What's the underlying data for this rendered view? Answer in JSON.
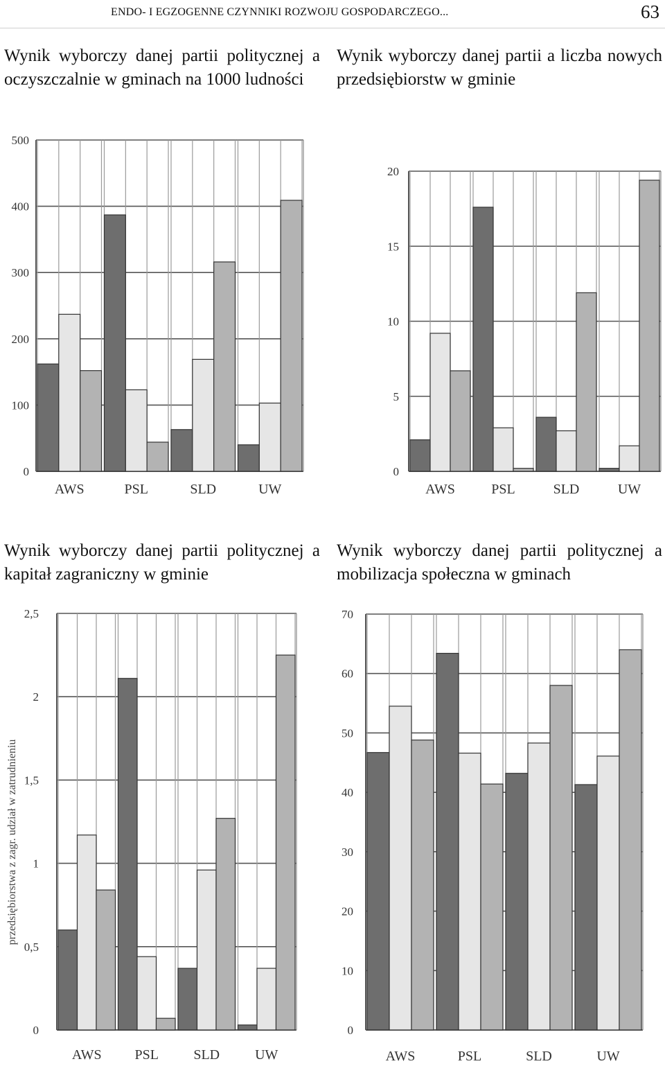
{
  "header": {
    "running_title": "ENDO- I EGZOGENNE CZYNNIKI ROZWOJU GOSPODARCZEGO...",
    "page_number": "63"
  },
  "colors": {
    "series1": "#6e6e6e",
    "series2": "#e6e6e6",
    "series3": "#b3b3b3",
    "grid": "#555555"
  },
  "captions": [
    "Wynik wyborczy danej partii politycznej a oczyszczalnie w gminach na 1000 ludności",
    "Wynik wyborczy danej partii a liczba nowych przedsiębiorstw w gminie",
    "Wynik wyborczy danej partii politycznej a kapitał zagraniczny w gminie",
    "Wynik wyborczy danej partii politycznej a mobilizacja społeczna w gminach"
  ],
  "chart_data": [
    {
      "type": "bar",
      "categories": [
        "AWS",
        "PSL",
        "SLD",
        "UW"
      ],
      "series": [
        {
          "values": [
            162,
            387,
            63,
            40
          ]
        },
        {
          "values": [
            237,
            123,
            169,
            103
          ]
        },
        {
          "values": [
            152,
            44,
            316,
            409
          ]
        }
      ],
      "yticks": [
        "0",
        "100",
        "200",
        "300",
        "400",
        "500"
      ],
      "ylim": [
        0,
        500
      ],
      "ylabel": "",
      "grid": true
    },
    {
      "type": "bar",
      "categories": [
        "AWS",
        "PSL",
        "SLD",
        "UW"
      ],
      "series": [
        {
          "values": [
            2.1,
            17.6,
            3.6,
            0.2
          ]
        },
        {
          "values": [
            9.2,
            2.9,
            2.7,
            1.7
          ]
        },
        {
          "values": [
            6.7,
            0.2,
            11.9,
            19.4
          ]
        }
      ],
      "yticks": [
        "0",
        "5",
        "10",
        "15",
        "20"
      ],
      "ylim": [
        0,
        20
      ],
      "ylabel": "",
      "grid": true
    },
    {
      "type": "bar",
      "categories": [
        "AWS",
        "PSL",
        "SLD",
        "UW"
      ],
      "series": [
        {
          "values": [
            0.6,
            2.11,
            0.37,
            0.03
          ]
        },
        {
          "values": [
            1.17,
            0.44,
            0.96,
            0.37
          ]
        },
        {
          "values": [
            0.84,
            0.07,
            1.27,
            2.25
          ]
        }
      ],
      "yticks": [
        "0",
        "0,5",
        "1",
        "1,5",
        "2",
        "2,5"
      ],
      "ylim": [
        0,
        2.5
      ],
      "ylabel": "przedsiębiorstwa z zagr. udział w zatrudnieniu",
      "grid": true
    },
    {
      "type": "bar",
      "categories": [
        "AWS",
        "PSL",
        "SLD",
        "UW"
      ],
      "series": [
        {
          "values": [
            46.7,
            63.4,
            43.2,
            41.3
          ]
        },
        {
          "values": [
            54.5,
            46.6,
            48.3,
            46.1
          ]
        },
        {
          "values": [
            48.8,
            41.4,
            58.0,
            64.0
          ]
        }
      ],
      "yticks": [
        "0",
        "10",
        "20",
        "30",
        "40",
        "50",
        "60",
        "70"
      ],
      "ylim": [
        0,
        70
      ],
      "ylabel": "",
      "grid": true
    }
  ]
}
